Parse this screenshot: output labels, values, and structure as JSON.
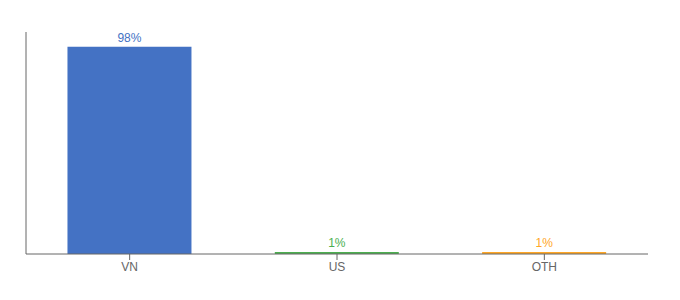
{
  "chart_data": {
    "type": "bar",
    "categories": [
      "VN",
      "US",
      "OTH"
    ],
    "values": [
      98,
      1,
      1
    ],
    "value_labels": [
      "98%",
      "1%",
      "1%"
    ],
    "data_labels": true,
    "colors": [
      "#4472c4",
      "#4caf50",
      "#ffa726"
    ],
    "ylim": [
      0,
      105
    ],
    "tick_labels": "x",
    "grid": false
  }
}
